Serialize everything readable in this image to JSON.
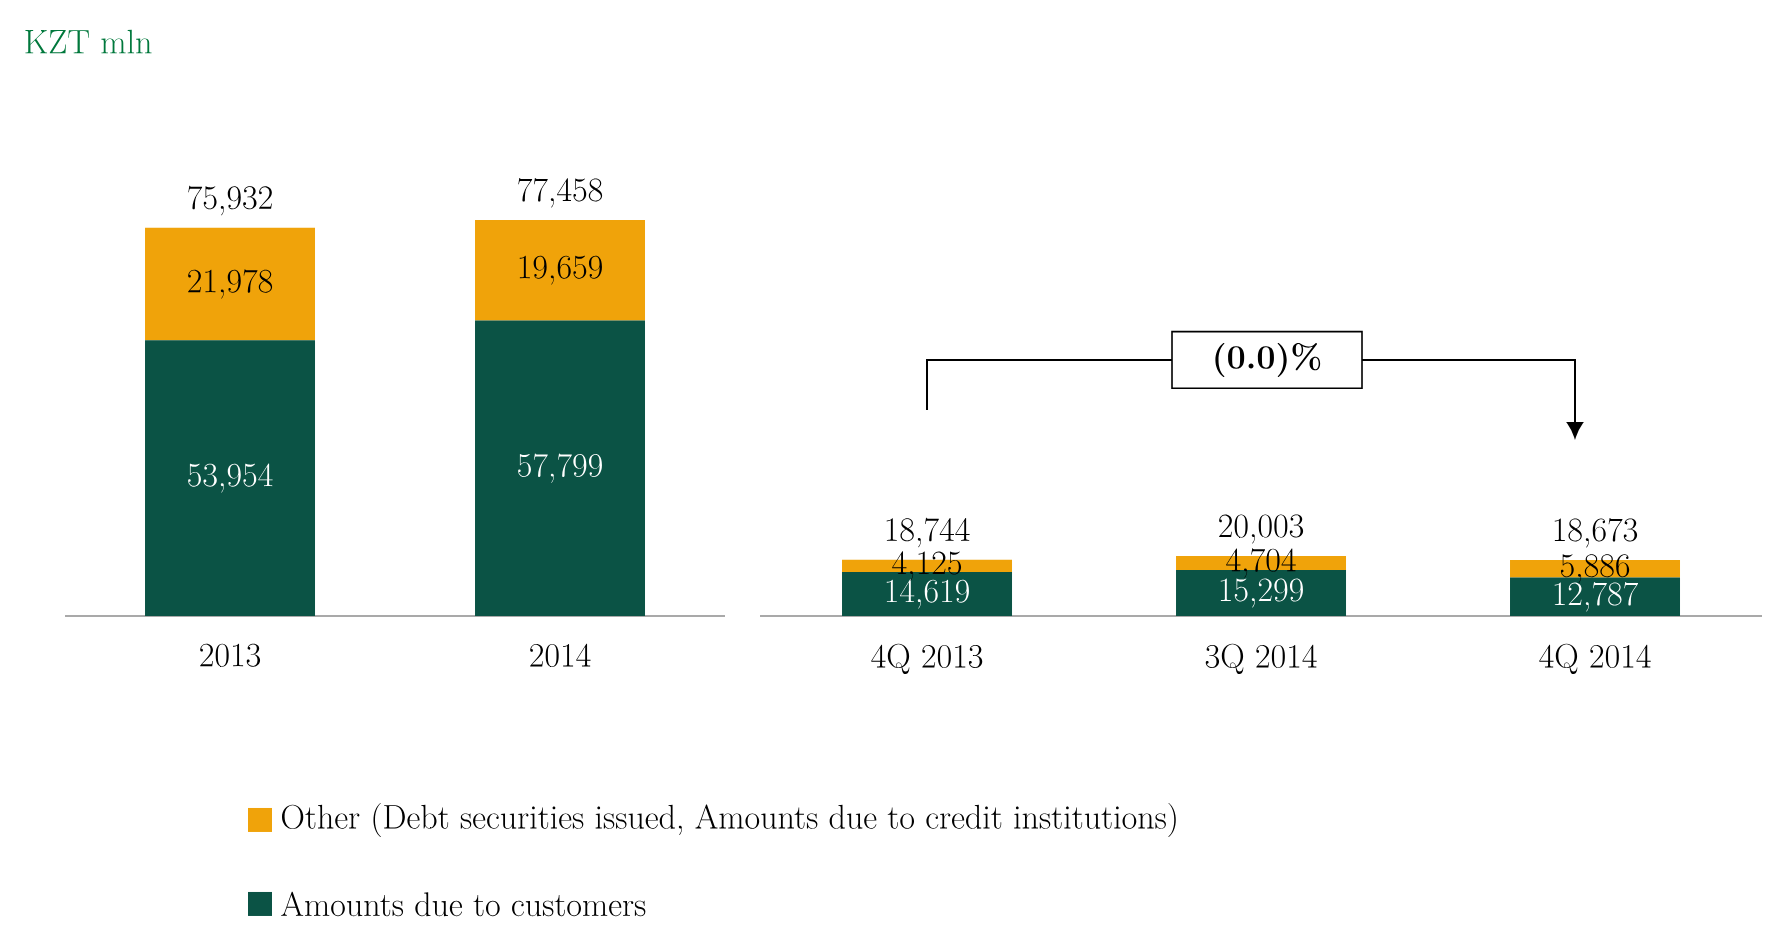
{
  "chart_data": [
    {
      "type": "bar",
      "title": "KZT mln",
      "stacked": true,
      "legend": "bottom",
      "categories": [
        "2013",
        "2014"
      ],
      "series": [
        {
          "name": "Amounts due to customers",
          "color": "#0b5345",
          "values": [
            53954,
            57799
          ],
          "value_labels": [
            "53,954",
            "57,799"
          ]
        },
        {
          "name": "Other (Debt securities issued, Amounts due to credit institutions)",
          "color": "#f0a30a",
          "values": [
            21978,
            19659
          ],
          "value_labels": [
            "21,978",
            "19,659"
          ]
        }
      ],
      "totals": [
        "75,932",
        "77,458"
      ]
    },
    {
      "type": "bar",
      "stacked": true,
      "categories": [
        "4Q 2013",
        "3Q 2014",
        "4Q 2014"
      ],
      "series": [
        {
          "color": "#0b5345",
          "values": [
            14619,
            15299,
            12787
          ],
          "value_labels": [
            "14,619",
            "15,299",
            "12,787"
          ]
        },
        {
          "color": "#f0a30a",
          "values": [
            4125,
            4704,
            5886
          ],
          "value_labels": [
            "4,125",
            "4,704",
            "5,886"
          ]
        }
      ],
      "totals": [
        "18,744",
        "20,003",
        "18,673"
      ],
      "annotations": [
        "(0.0)%"
      ]
    }
  ]
}
